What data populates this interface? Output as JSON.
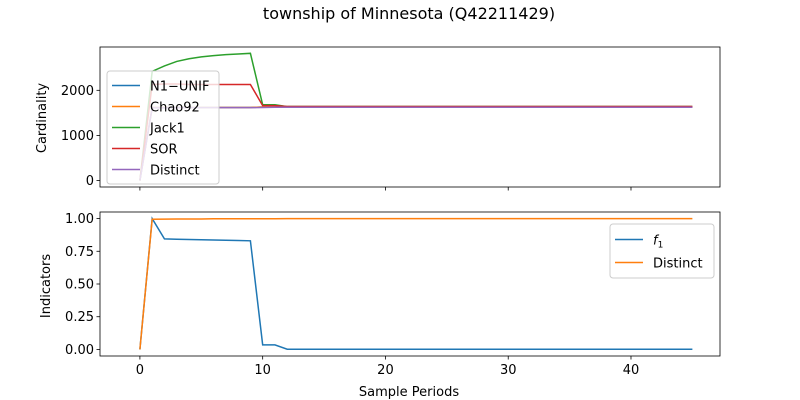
{
  "figure": {
    "title": "township of Minnesota (Q42211429)"
  },
  "chart_data": [
    {
      "type": "line",
      "ylabel": "Cardinality",
      "xlabel": "",
      "xlim": [
        -3.25,
        47.25
      ],
      "ylim": [
        -143,
        2960
      ],
      "yticks": [
        0,
        1000,
        2000
      ],
      "ytick_labels": [
        "0",
        "1000",
        "2000"
      ],
      "xticks": [
        0,
        10,
        20,
        30,
        40
      ],
      "show_xtick_labels": false,
      "grid": false,
      "legend_position": "upper-left",
      "series": [
        {
          "name": "N1−UNIF",
          "color": "#1f77b4",
          "x": [
            0,
            1,
            2,
            3,
            4,
            5,
            6,
            7,
            8,
            9,
            10,
            11,
            12,
            13,
            14,
            15,
            16,
            17,
            18,
            19,
            20,
            21,
            22,
            23,
            24,
            25,
            26,
            27,
            28,
            29,
            30,
            31,
            32,
            33,
            34,
            35,
            36,
            37,
            38,
            39,
            40,
            41,
            42,
            43,
            44,
            45
          ],
          "y": [
            0,
            1620,
            1620,
            1620,
            1620,
            1620,
            1620,
            1620,
            1620,
            1620,
            1630,
            1630,
            1630,
            1630,
            1630,
            1630,
            1630,
            1630,
            1630,
            1630,
            1630,
            1630,
            1630,
            1630,
            1630,
            1630,
            1630,
            1630,
            1630,
            1630,
            1630,
            1630,
            1630,
            1630,
            1630,
            1630,
            1630,
            1630,
            1630,
            1630,
            1630,
            1630,
            1630,
            1630,
            1630,
            1630
          ]
        },
        {
          "name": "Chao92",
          "color": "#ff7f0e",
          "x": [
            0,
            1,
            2,
            3,
            4,
            5,
            6,
            7,
            8,
            9,
            10,
            11,
            12,
            13,
            14,
            15,
            16,
            17,
            18,
            19,
            20,
            21,
            22,
            23,
            24,
            25,
            26,
            27,
            28,
            29,
            30,
            31,
            32,
            33,
            34,
            35,
            36,
            37,
            38,
            39,
            40,
            41,
            42,
            43,
            44,
            45
          ],
          "y": [
            0,
            1620,
            1620,
            1620,
            1620,
            1620,
            1620,
            1620,
            1620,
            1620,
            1630,
            1630,
            1630,
            1630,
            1630,
            1630,
            1630,
            1630,
            1630,
            1630,
            1630,
            1630,
            1630,
            1630,
            1630,
            1630,
            1630,
            1630,
            1630,
            1630,
            1630,
            1630,
            1630,
            1630,
            1630,
            1630,
            1630,
            1630,
            1630,
            1630,
            1630,
            1630,
            1630,
            1630,
            1630,
            1630
          ]
        },
        {
          "name": "Jack1",
          "color": "#2ca02c",
          "x": [
            0,
            1,
            2,
            3,
            4,
            5,
            6,
            7,
            8,
            9,
            10,
            11,
            12,
            13,
            14,
            15,
            16,
            17,
            18,
            19,
            20,
            21,
            22,
            23,
            24,
            25,
            26,
            27,
            28,
            29,
            30,
            31,
            32,
            33,
            34,
            35,
            36,
            37,
            38,
            39,
            40,
            41,
            42,
            43,
            44,
            45
          ],
          "y": [
            0,
            2420,
            2540,
            2640,
            2700,
            2740,
            2770,
            2790,
            2805,
            2820,
            1680,
            1680,
            1640,
            1640,
            1640,
            1640,
            1640,
            1640,
            1640,
            1640,
            1640,
            1640,
            1640,
            1640,
            1640,
            1640,
            1640,
            1640,
            1640,
            1640,
            1640,
            1640,
            1640,
            1640,
            1640,
            1640,
            1640,
            1640,
            1640,
            1640,
            1640,
            1640,
            1640,
            1640,
            1640,
            1640
          ]
        },
        {
          "name": "SOR",
          "color": "#d62728",
          "x": [
            0,
            1,
            2,
            3,
            4,
            5,
            6,
            7,
            8,
            9,
            10,
            11,
            12,
            13,
            14,
            15,
            16,
            17,
            18,
            19,
            20,
            21,
            22,
            23,
            24,
            25,
            26,
            27,
            28,
            29,
            30,
            31,
            32,
            33,
            34,
            35,
            36,
            37,
            38,
            39,
            40,
            41,
            42,
            43,
            44,
            45
          ],
          "y": [
            0,
            2130,
            2140,
            2140,
            2130,
            2130,
            2130,
            2130,
            2130,
            2130,
            1660,
            1660,
            1640,
            1640,
            1640,
            1640,
            1640,
            1640,
            1640,
            1640,
            1640,
            1640,
            1640,
            1640,
            1640,
            1640,
            1640,
            1640,
            1640,
            1640,
            1640,
            1640,
            1640,
            1640,
            1640,
            1640,
            1640,
            1640,
            1640,
            1640,
            1640,
            1640,
            1640,
            1640,
            1640,
            1640
          ]
        },
        {
          "name": "Distinct",
          "color": "#9467bd",
          "x": [
            0,
            1,
            2,
            3,
            4,
            5,
            6,
            7,
            8,
            9,
            10,
            11,
            12,
            13,
            14,
            15,
            16,
            17,
            18,
            19,
            20,
            21,
            22,
            23,
            24,
            25,
            26,
            27,
            28,
            29,
            30,
            31,
            32,
            33,
            34,
            35,
            36,
            37,
            38,
            39,
            40,
            41,
            42,
            43,
            44,
            45
          ],
          "y": [
            0,
            1610,
            1610,
            1615,
            1615,
            1615,
            1615,
            1615,
            1615,
            1615,
            1620,
            1625,
            1625,
            1625,
            1625,
            1625,
            1625,
            1625,
            1625,
            1625,
            1625,
            1625,
            1625,
            1625,
            1625,
            1625,
            1625,
            1625,
            1625,
            1625,
            1625,
            1625,
            1625,
            1625,
            1625,
            1625,
            1625,
            1625,
            1625,
            1625,
            1625,
            1625,
            1625,
            1625,
            1625,
            1625
          ]
        }
      ]
    },
    {
      "type": "line",
      "ylabel": "Indicators",
      "xlabel": "Sample Periods",
      "xlim": [
        -3.25,
        47.25
      ],
      "ylim": [
        -0.05,
        1.05
      ],
      "yticks": [
        0,
        0.25,
        0.5,
        0.75,
        1
      ],
      "ytick_labels": [
        "0.00",
        "0.25",
        "0.50",
        "0.75",
        "1.00"
      ],
      "xticks": [
        0,
        10,
        20,
        30,
        40
      ],
      "xtick_labels": [
        "0",
        "10",
        "20",
        "30",
        "40"
      ],
      "show_xtick_labels": true,
      "grid": false,
      "legend_position": "upper-right",
      "series": [
        {
          "name": "f",
          "name_subscript": "1",
          "color": "#1f77b4",
          "x": [
            0,
            1,
            2,
            3,
            4,
            5,
            6,
            7,
            8,
            9,
            10,
            11,
            12,
            13,
            14,
            15,
            16,
            17,
            18,
            19,
            20,
            21,
            22,
            23,
            24,
            25,
            26,
            27,
            28,
            29,
            30,
            31,
            32,
            33,
            34,
            35,
            36,
            37,
            38,
            39,
            40,
            41,
            42,
            43,
            44,
            45
          ],
          "y": [
            0,
            1.0,
            0.845,
            0.842,
            0.84,
            0.838,
            0.836,
            0.834,
            0.832,
            0.83,
            0.035,
            0.035,
            0.002,
            0.002,
            0.002,
            0.002,
            0.002,
            0.002,
            0.002,
            0.002,
            0.002,
            0.002,
            0.002,
            0.002,
            0.002,
            0.002,
            0.002,
            0.002,
            0.002,
            0.002,
            0.002,
            0.002,
            0.002,
            0.002,
            0.002,
            0.002,
            0.002,
            0.002,
            0.002,
            0.002,
            0.002,
            0.002,
            0.002,
            0.002,
            0.002,
            0.002
          ]
        },
        {
          "name": "Distinct",
          "color": "#ff7f0e",
          "x": [
            0,
            1,
            2,
            3,
            4,
            5,
            6,
            7,
            8,
            9,
            10,
            11,
            12,
            13,
            14,
            15,
            16,
            17,
            18,
            19,
            20,
            21,
            22,
            23,
            24,
            25,
            26,
            27,
            28,
            29,
            30,
            31,
            32,
            33,
            34,
            35,
            36,
            37,
            38,
            39,
            40,
            41,
            42,
            43,
            44,
            45
          ],
          "y": [
            0,
            0.995,
            0.996,
            0.997,
            0.997,
            0.997,
            0.998,
            0.998,
            0.998,
            0.998,
            0.998,
            0.998,
            0.999,
            0.999,
            0.999,
            0.999,
            0.999,
            0.999,
            0.999,
            0.999,
            0.999,
            0.999,
            0.999,
            0.999,
            0.999,
            0.999,
            0.999,
            0.999,
            0.999,
            0.999,
            0.999,
            0.999,
            0.999,
            0.999,
            0.999,
            0.999,
            0.999,
            0.999,
            0.999,
            0.999,
            0.999,
            0.999,
            0.999,
            0.999,
            0.999,
            0.999
          ]
        }
      ]
    }
  ]
}
